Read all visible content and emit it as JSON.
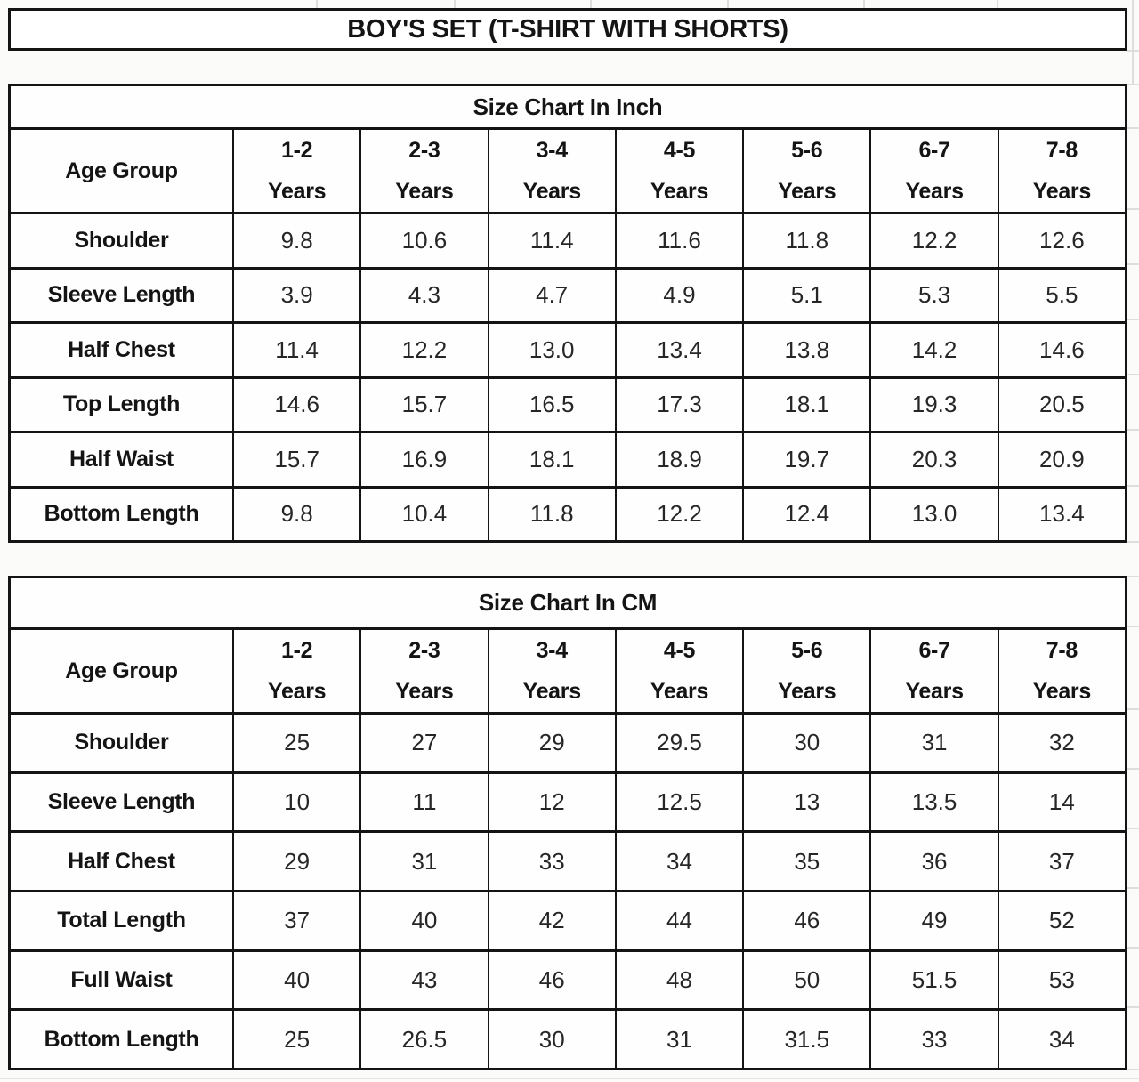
{
  "page_title": "BOY'S SET (T-SHIRT WITH SHORTS)",
  "tables": [
    {
      "title": "Size Chart In Inch",
      "corner_label": "Age Group",
      "age_groups": [
        {
          "range": "1-2",
          "unit": "Years"
        },
        {
          "range": "2-3",
          "unit": "Years"
        },
        {
          "range": "3-4",
          "unit": "Years"
        },
        {
          "range": "4-5",
          "unit": "Years"
        },
        {
          "range": "5-6",
          "unit": "Years"
        },
        {
          "range": "6-7",
          "unit": "Years"
        },
        {
          "range": "7-8",
          "unit": "Years"
        }
      ],
      "rows": [
        {
          "label": "Shoulder",
          "values": [
            "9.8",
            "10.6",
            "11.4",
            "11.6",
            "11.8",
            "12.2",
            "12.6"
          ]
        },
        {
          "label": "Sleeve Length",
          "values": [
            "3.9",
            "4.3",
            "4.7",
            "4.9",
            "5.1",
            "5.3",
            "5.5"
          ]
        },
        {
          "label": "Half Chest",
          "values": [
            "11.4",
            "12.2",
            "13.0",
            "13.4",
            "13.8",
            "14.2",
            "14.6"
          ]
        },
        {
          "label": "Top Length",
          "values": [
            "14.6",
            "15.7",
            "16.5",
            "17.3",
            "18.1",
            "19.3",
            "20.5"
          ]
        },
        {
          "label": "Half Waist",
          "values": [
            "15.7",
            "16.9",
            "18.1",
            "18.9",
            "19.7",
            "20.3",
            "20.9"
          ]
        },
        {
          "label": "Bottom Length",
          "values": [
            "9.8",
            "10.4",
            "11.8",
            "12.2",
            "12.4",
            "13.0",
            "13.4"
          ]
        }
      ]
    },
    {
      "title": "Size Chart In CM",
      "corner_label": "Age Group",
      "age_groups": [
        {
          "range": "1-2",
          "unit": "Years"
        },
        {
          "range": "2-3",
          "unit": "Years"
        },
        {
          "range": "3-4",
          "unit": "Years"
        },
        {
          "range": "4-5",
          "unit": "Years"
        },
        {
          "range": "5-6",
          "unit": "Years"
        },
        {
          "range": "6-7",
          "unit": "Years"
        },
        {
          "range": "7-8",
          "unit": "Years"
        }
      ],
      "rows": [
        {
          "label": "Shoulder",
          "values": [
            "25",
            "27",
            "29",
            "29.5",
            "30",
            "31",
            "32"
          ]
        },
        {
          "label": "Sleeve Length",
          "values": [
            "10",
            "11",
            "12",
            "12.5",
            "13",
            "13.5",
            "14"
          ]
        },
        {
          "label": "Half Chest",
          "values": [
            "29",
            "31",
            "33",
            "34",
            "35",
            "36",
            "37"
          ]
        },
        {
          "label": "Total Length",
          "values": [
            "37",
            "40",
            "42",
            "44",
            "46",
            "49",
            "52"
          ]
        },
        {
          "label": "Full Waist",
          "values": [
            "40",
            "43",
            "46",
            "48",
            "50",
            "51.5",
            "53"
          ]
        },
        {
          "label": "Bottom Length",
          "values": [
            "25",
            "26.5",
            "30",
            "31",
            "31.5",
            "33",
            "34"
          ]
        }
      ]
    }
  ],
  "colors": {
    "table_border": "#141414",
    "heading_text": "#141414",
    "value_text": "#262626",
    "cell_background": "#fefefe",
    "page_background": "#fbfbfa",
    "gridline": "#dedede"
  }
}
